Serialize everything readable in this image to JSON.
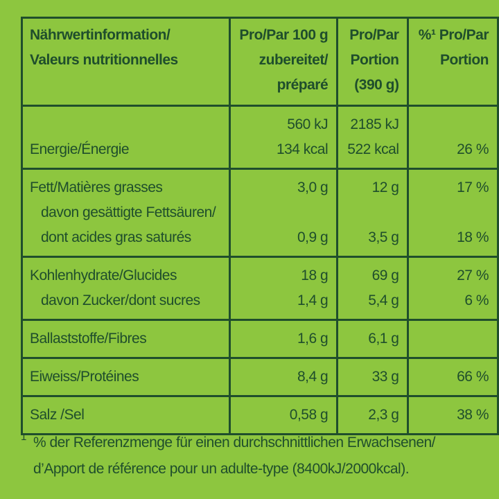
{
  "table": {
    "header": [
      [
        "Nährwertinformation/",
        "Valeurs nutritionnelles"
      ],
      [
        "Pro/Par 100 g",
        "zubereitet/",
        "préparé"
      ],
      [
        "Pro/Par",
        "Portion",
        "(390 g)"
      ],
      [
        "%¹ Pro/Par",
        "Portion"
      ]
    ],
    "groups": [
      [
        {
          "label": [
            "Energie/Énergie"
          ],
          "values": [
            [
              "560 kJ",
              "134 kcal"
            ],
            [
              "2185 kJ",
              "522 kcal"
            ],
            [
              "26 %"
            ]
          ]
        }
      ],
      [
        {
          "label": [
            "Fett/Matières grasses"
          ],
          "values": [
            [
              "3,0 g"
            ],
            [
              "12 g"
            ],
            [
              "17 %"
            ]
          ]
        },
        {
          "label": [
            "davon gesättigte Fettsäuren/",
            "dont acides gras saturés"
          ],
          "values": [
            [
              "0,9 g"
            ],
            [
              "3,5 g"
            ],
            [
              "18 %"
            ]
          ]
        }
      ],
      [
        {
          "label": [
            "Kohlenhydrate/Glucides"
          ],
          "values": [
            [
              "18 g"
            ],
            [
              "69 g"
            ],
            [
              "27 %"
            ]
          ]
        },
        {
          "label": [
            "davon Zucker/dont sucres"
          ],
          "values": [
            [
              "1,4 g"
            ],
            [
              "5,4 g"
            ],
            [
              "6 %"
            ]
          ]
        }
      ],
      [
        {
          "label": [
            "Ballaststoffe/Fibres"
          ],
          "values": [
            [
              "1,6 g"
            ],
            [
              "6,1 g"
            ]
          ]
        }
      ],
      [
        {
          "label": [
            "Eiweiss/Protéines"
          ],
          "values": [
            [
              "8,4 g"
            ],
            [
              "33 g"
            ],
            [
              "66 %"
            ]
          ]
        }
      ],
      [
        {
          "label": [
            "Salz /Sel"
          ],
          "values": [
            [
              "0,58 g"
            ],
            [
              "2,3 g"
            ],
            [
              "38 %"
            ]
          ]
        }
      ]
    ]
  },
  "footnote": {
    "mark": "1",
    "lines": [
      "% der Referenzmenge für einen durchschnittlichen Erwachsenen/",
      "d’Apport de référence pour un adulte-type (8400kJ/2000kcal)."
    ]
  }
}
